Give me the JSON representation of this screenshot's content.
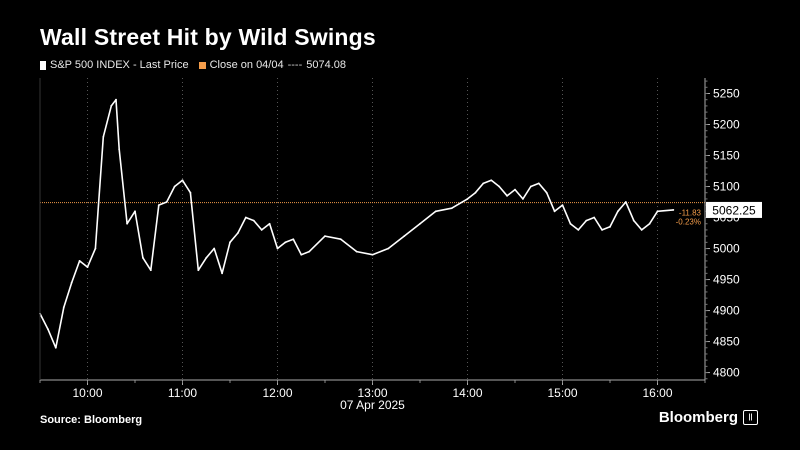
{
  "title": "Wall Street Hit by Wild Swings",
  "legend": {
    "series_label": "S&P 500 INDEX - Last Price",
    "ref_label": "Close on 04/04",
    "ref_dashes": "----",
    "ref_value_text": "5074.08"
  },
  "source": "Source: Bloomberg",
  "brand": "Bloomberg",
  "colors": {
    "series": "#ffffff",
    "reference": "#f39c4a",
    "grid": "#555555",
    "background": "#000000"
  },
  "chart_data": {
    "type": "line",
    "series": [
      {
        "name": "S&P 500 INDEX - Last Price",
        "x": [
          "09:30",
          "09:35",
          "09:40",
          "09:45",
          "09:50",
          "09:55",
          "10:00",
          "10:05",
          "10:10",
          "10:15",
          "10:18",
          "10:20",
          "10:25",
          "10:30",
          "10:35",
          "10:40",
          "10:45",
          "10:50",
          "10:55",
          "11:00",
          "11:05",
          "11:10",
          "11:15",
          "11:20",
          "11:25",
          "11:30",
          "11:35",
          "11:40",
          "11:45",
          "11:50",
          "11:55",
          "12:00",
          "12:05",
          "12:10",
          "12:15",
          "12:20",
          "12:30",
          "12:40",
          "12:50",
          "13:00",
          "13:10",
          "13:20",
          "13:30",
          "13:40",
          "13:50",
          "14:00",
          "14:05",
          "14:10",
          "14:15",
          "14:20",
          "14:25",
          "14:30",
          "14:35",
          "14:40",
          "14:45",
          "14:50",
          "14:55",
          "15:00",
          "15:05",
          "15:10",
          "15:15",
          "15:20",
          "15:25",
          "15:30",
          "15:35",
          "15:40",
          "15:45",
          "15:50",
          "15:55",
          "16:00",
          "16:10"
        ],
        "values": [
          4895,
          4870,
          4840,
          4905,
          4945,
          4980,
          4970,
          5000,
          5180,
          5230,
          5240,
          5160,
          5040,
          5060,
          4985,
          4965,
          5070,
          5075,
          5100,
          5110,
          5090,
          4965,
          4985,
          5000,
          4960,
          5010,
          5025,
          5050,
          5045,
          5030,
          5040,
          5000,
          5010,
          5015,
          4990,
          4995,
          5020,
          5015,
          4995,
          4990,
          5000,
          5020,
          5040,
          5060,
          5065,
          5080,
          5090,
          5105,
          5110,
          5100,
          5085,
          5095,
          5080,
          5100,
          5105,
          5090,
          5060,
          5070,
          5040,
          5030,
          5045,
          5050,
          5030,
          5035,
          5060,
          5075,
          5045,
          5030,
          5040,
          5060,
          5062.25
        ]
      }
    ],
    "reference_line": {
      "label": "Close on 04/04",
      "value": 5074.08
    },
    "last_value_label": "5062.25",
    "change_labels": [
      "-11.83",
      "-0.23%"
    ],
    "x_ticks": [
      "10:00",
      "11:00",
      "12:00",
      "13:00",
      "14:00",
      "15:00",
      "16:00"
    ],
    "xlabel": "07 Apr 2025",
    "y_ticks": [
      4800,
      4850,
      4900,
      4950,
      5000,
      5050,
      5100,
      5150,
      5200,
      5250
    ],
    "y_tick_labels": [
      "4800",
      "4850",
      "4900",
      "4950",
      "5000",
      "5050",
      "5100",
      "5150",
      "5200",
      "5250"
    ],
    "xlim": [
      "09:30",
      "16:30"
    ],
    "ylim": [
      4788,
      5275
    ],
    "grid": "vertical dotted",
    "legend_position": "top-left"
  }
}
